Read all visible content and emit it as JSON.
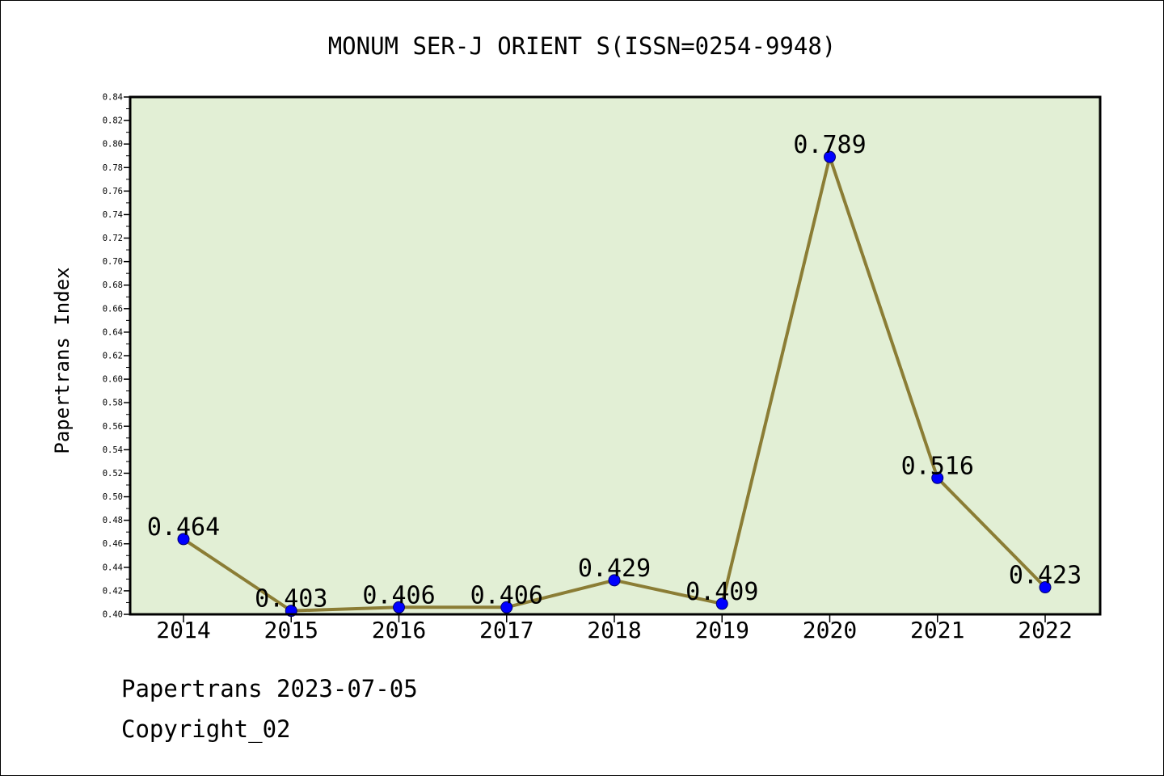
{
  "chart_data": {
    "type": "line",
    "title": "MONUM SER-J ORIENT S(ISSN=0254-9948)",
    "xlabel": "",
    "ylabel": "Papertrans Index",
    "categories": [
      "2014",
      "2015",
      "2016",
      "2017",
      "2018",
      "2019",
      "2020",
      "2021",
      "2022"
    ],
    "values": [
      0.464,
      0.403,
      0.406,
      0.406,
      0.429,
      0.409,
      0.789,
      0.516,
      0.423
    ],
    "data_labels": [
      "0.464",
      "0.403",
      "0.406",
      "0.406",
      "0.429",
      "0.409",
      "0.789",
      "0.516",
      "0.423"
    ],
    "ylim": [
      0.4,
      0.84
    ],
    "ytick_step": 0.02,
    "ytick_decimals": 2,
    "grid": false,
    "legend": "none",
    "colors": {
      "plot_background": "#e2efd5",
      "line": "#8b7d35",
      "marker": "#0000ff",
      "axis": "#000000"
    }
  },
  "footer": {
    "date_line": "Papertrans 2023-07-05",
    "copyright": "Copyright_02"
  }
}
